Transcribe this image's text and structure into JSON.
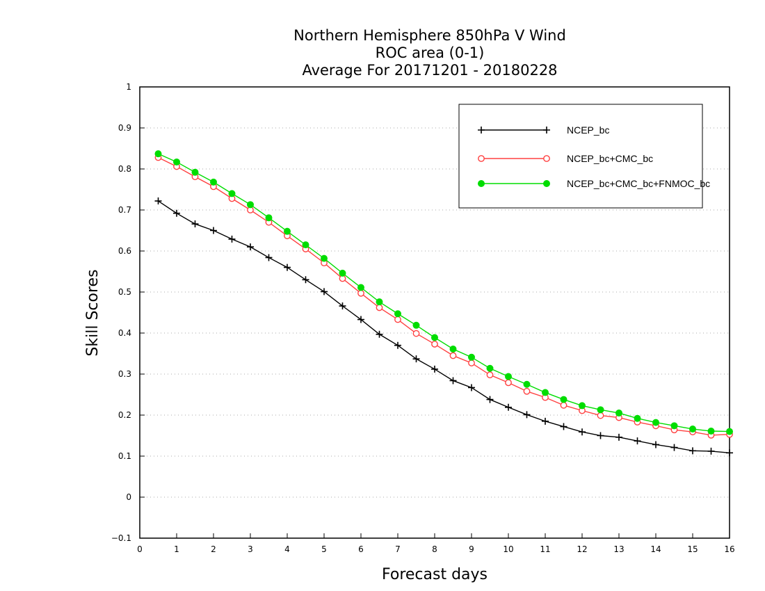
{
  "chart_data": {
    "type": "line",
    "title": [
      "Northern Hemisphere 850hPa V Wind",
      "ROC area (0-1)",
      "Average For 20171201 - 20180228"
    ],
    "xlabel": "Forecast days",
    "ylabel": "Skill Scores",
    "xlim": [
      0,
      16
    ],
    "ylim": [
      -0.1,
      1
    ],
    "xticks": [
      "0",
      "1",
      "2",
      "3",
      "4",
      "5",
      "6",
      "7",
      "8",
      "9",
      "10",
      "11",
      "12",
      "13",
      "14",
      "15",
      "16"
    ],
    "yticks": [
      "-0.1",
      "0",
      "0.1",
      "0.2",
      "0.3",
      "0.4",
      "0.5",
      "0.6",
      "0.7",
      "0.8",
      "0.9",
      "1"
    ],
    "grid": true,
    "legend_position": "top-right",
    "x": [
      0.5,
      1,
      1.5,
      2,
      2.5,
      3,
      3.5,
      4,
      4.5,
      5,
      5.5,
      6,
      6.5,
      7,
      7.5,
      8,
      8.5,
      9,
      9.5,
      10,
      10.5,
      11,
      11.5,
      12,
      12.5,
      13,
      13.5,
      14,
      14.5,
      15,
      15.5,
      16
    ],
    "series": [
      {
        "name": "NCEP_bc",
        "color": "#000000",
        "marker": "plus",
        "values": [
          0.722,
          0.692,
          0.666,
          0.65,
          0.629,
          0.61,
          0.584,
          0.56,
          0.53,
          0.501,
          0.466,
          0.433,
          0.397,
          0.37,
          0.337,
          0.312,
          0.284,
          0.267,
          0.238,
          0.219,
          0.201,
          0.185,
          0.172,
          0.159,
          0.15,
          0.146,
          0.137,
          0.128,
          0.121,
          0.113,
          0.112,
          0.108
        ]
      },
      {
        "name": "NCEP_bc+CMC_bc",
        "color": "#ff4040",
        "marker": "open-circle",
        "values": [
          0.828,
          0.806,
          0.781,
          0.757,
          0.728,
          0.7,
          0.67,
          0.637,
          0.605,
          0.571,
          0.533,
          0.497,
          0.462,
          0.433,
          0.399,
          0.373,
          0.345,
          0.327,
          0.298,
          0.279,
          0.258,
          0.243,
          0.224,
          0.211,
          0.199,
          0.194,
          0.183,
          0.174,
          0.164,
          0.159,
          0.151,
          0.153
        ]
      },
      {
        "name": "NCEP_bc+CMC_bc+FNMOC_bc",
        "color": "#00dd00",
        "marker": "filled-circle",
        "values": [
          0.837,
          0.817,
          0.792,
          0.768,
          0.74,
          0.713,
          0.681,
          0.648,
          0.615,
          0.582,
          0.546,
          0.511,
          0.476,
          0.447,
          0.419,
          0.389,
          0.361,
          0.341,
          0.314,
          0.294,
          0.275,
          0.255,
          0.238,
          0.223,
          0.213,
          0.205,
          0.192,
          0.182,
          0.174,
          0.166,
          0.161,
          0.16
        ]
      }
    ]
  }
}
